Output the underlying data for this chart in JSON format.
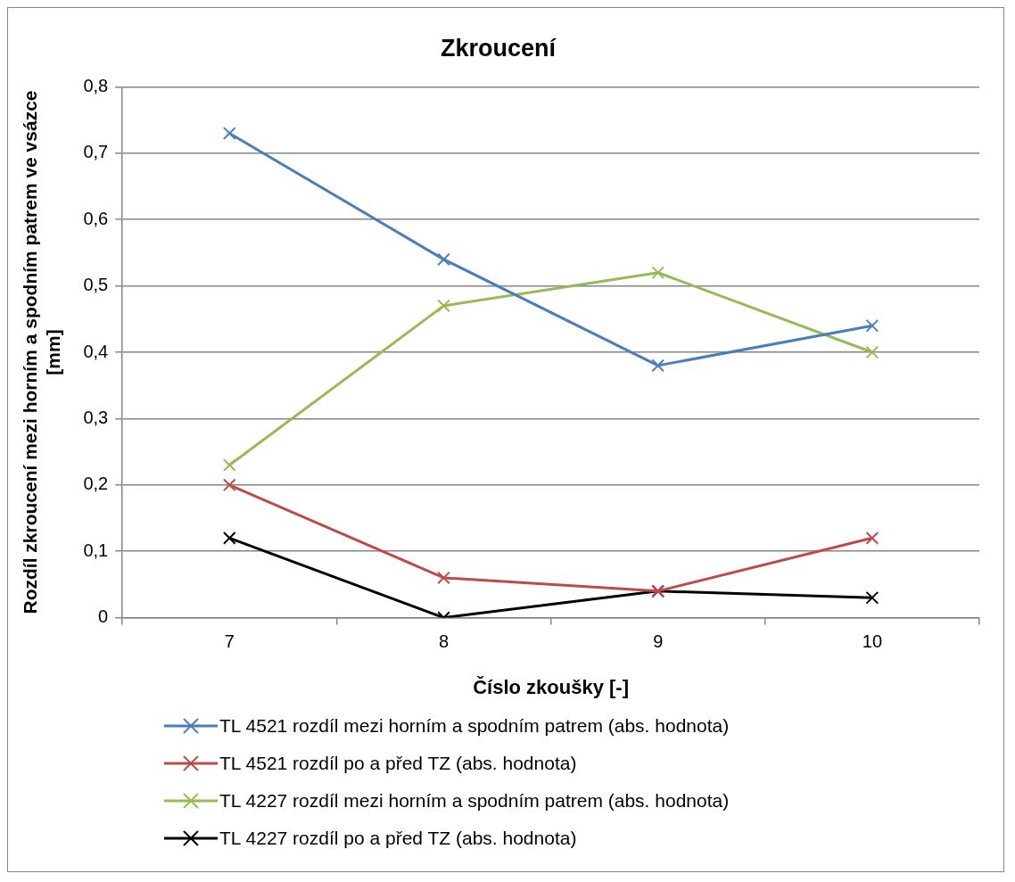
{
  "chart_data": {
    "type": "line",
    "title": "Zkroucení",
    "xlabel": "Číslo zkoušky [-]",
    "ylabel": "Rozdíl zkroucení mezi horním a spodním patrem ve vsázce [mm]",
    "categories": [
      "7",
      "8",
      "9",
      "10"
    ],
    "series": [
      {
        "name": "TL 4521 rozdíl mezi horním a spodním patrem (abs. hodnota)",
        "color": "#4a7ebb",
        "values": [
          0.73,
          0.54,
          0.38,
          0.44
        ]
      },
      {
        "name": "TL 4521 rozdíl po a před TZ (abs. hodnota)",
        "color": "#be4b48",
        "values": [
          0.2,
          0.06,
          0.04,
          0.12
        ]
      },
      {
        "name": "TL 4227 rozdíl mezi horním a spodním patrem (abs. hodnota)",
        "color": "#98b954",
        "values": [
          0.23,
          0.47,
          0.52,
          0.4
        ]
      },
      {
        "name": "TL 4227 rozdíl po a před TZ (abs. hodnota)",
        "color": "#000000",
        "values": [
          0.12,
          0,
          0.04,
          0.03
        ]
      }
    ],
    "ylim": [
      0,
      0.8
    ],
    "yticks": [
      {
        "value": 0,
        "label": "0"
      },
      {
        "value": 0.1,
        "label": "0,1"
      },
      {
        "value": 0.2,
        "label": "0,2"
      },
      {
        "value": 0.3,
        "label": "0,3"
      },
      {
        "value": 0.4,
        "label": "0,4"
      },
      {
        "value": 0.5,
        "label": "0,5"
      },
      {
        "value": 0.6,
        "label": "0,6"
      },
      {
        "value": 0.7,
        "label": "0,7"
      },
      {
        "value": 0.8,
        "label": "0,8"
      }
    ],
    "grid": "y",
    "legend": "bottom",
    "marker": "cross",
    "line_style": "solid"
  }
}
